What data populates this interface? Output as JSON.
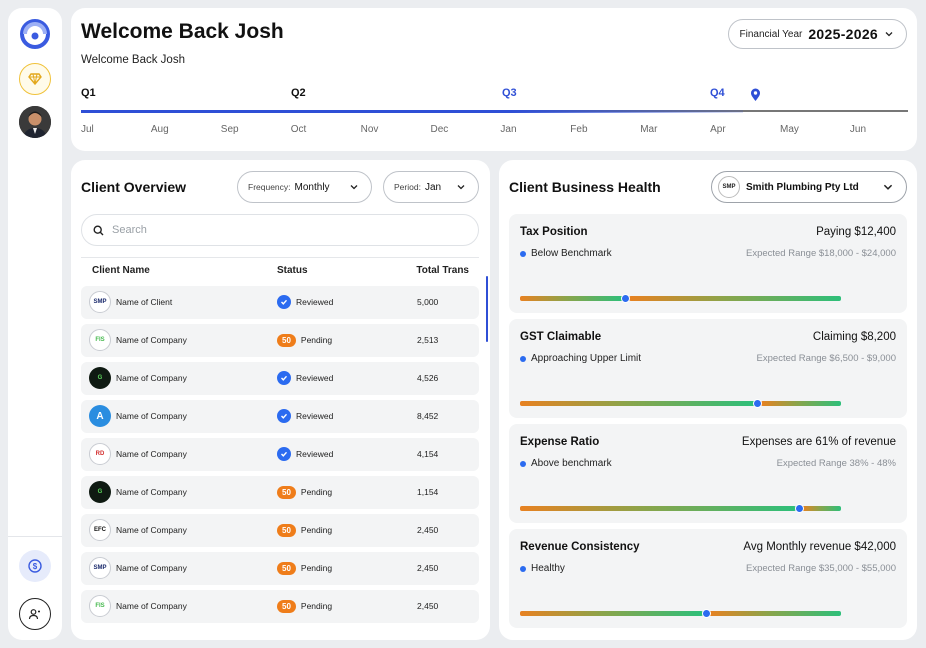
{
  "header": {
    "title": "Welcome Back Josh",
    "subtitle": "Welcome Back Josh",
    "fy_label": "Financial Year",
    "fy_value": "2025-2026"
  },
  "timeline": {
    "quarters": [
      "Q1",
      "Q2",
      "Q3",
      "Q4"
    ],
    "months": [
      "Jul",
      "Aug",
      "Sep",
      "Oct",
      "Nov",
      "Dec",
      "Jan",
      "Feb",
      "Mar",
      "Apr",
      "May",
      "Jun"
    ],
    "current_month": "Apr",
    "progress_fraction": 0.8
  },
  "client_overview": {
    "title": "Client Overview",
    "frequency_label": "Frequency:",
    "frequency_value": "Monthly",
    "period_label": "Period:",
    "period_value": "Jan",
    "search_placeholder": "Search",
    "columns": [
      "Client Name",
      "Status",
      "Total Trans"
    ],
    "rows": [
      {
        "logo": "SMP",
        "name": "Name of Client",
        "status": "Reviewed",
        "count": "",
        "total": "5,000"
      },
      {
        "logo": "FIS",
        "name": "Name of Company",
        "status": "Pending",
        "count": "50",
        "total": "2,513"
      },
      {
        "logo": "G",
        "name": "Name of Company",
        "status": "Reviewed",
        "count": "",
        "total": "4,526"
      },
      {
        "logo": "A",
        "name": "Name of Company",
        "status": "Reviewed",
        "count": "",
        "total": "8,452"
      },
      {
        "logo": "RD",
        "name": "Name of Company",
        "status": "Reviewed",
        "count": "",
        "total": "4,154"
      },
      {
        "logo": "G",
        "name": "Name of Company",
        "status": "Pending",
        "count": "50",
        "total": "1,154"
      },
      {
        "logo": "EFC",
        "name": "Name of Company",
        "status": "Pending",
        "count": "50",
        "total": "2,450"
      },
      {
        "logo": "SMP",
        "name": "Name of Company",
        "status": "Pending",
        "count": "50",
        "total": "2,450"
      },
      {
        "logo": "FIS",
        "name": "Name of Company",
        "status": "Pending",
        "count": "50",
        "total": "2,450"
      }
    ]
  },
  "business_health": {
    "title": "Client Business Health",
    "company_logo": "SMP",
    "company_name": "Smith Plumbing Pty Ltd",
    "metrics": [
      {
        "title": "Tax Position",
        "value": "Paying $12,400",
        "status": "Below Benchmark",
        "range": "Expected Range $18,000 - $24,000",
        "marker_fraction": 0.33
      },
      {
        "title": "GST Claimable",
        "value": "Claiming $8,200",
        "status": "Approaching Upper Limit",
        "range": "Expected Range $6,500 - $9,000",
        "marker_fraction": 0.74
      },
      {
        "title": "Expense Ratio",
        "value": "Expenses are 61% of revenue",
        "status": "Above benchmark",
        "range": "Expected Range 38% - 48%",
        "marker_fraction": 0.87
      },
      {
        "title": "Revenue Consistency",
        "value": "Avg Monthly revenue $42,000",
        "status": "Healthy",
        "range": "Expected Range $35,000 - $55,000",
        "marker_fraction": 0.58
      }
    ]
  },
  "colors": {
    "accent": "#2f4fd6",
    "pending": "#ef7d1a",
    "reviewed": "#2b6bf0"
  }
}
